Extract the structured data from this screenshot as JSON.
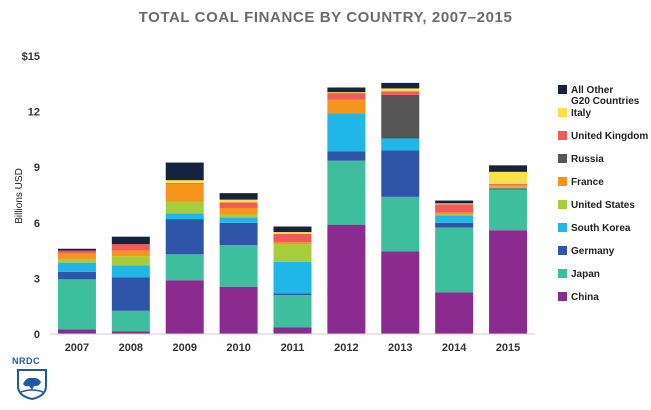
{
  "chart_data": {
    "type": "bar",
    "stacked": true,
    "title": "TOTAL COAL FINANCE BY COUNTRY, 2007–2015",
    "xlabel": "",
    "ylabel": "Billions USD",
    "ylim": [
      0,
      15
    ],
    "yticks": [
      0,
      3,
      6,
      9,
      12,
      15
    ],
    "ytick_labels": [
      "0",
      "3",
      "6",
      "9",
      "12",
      "$15"
    ],
    "grid": false,
    "legend_position": "right",
    "categories": [
      "2007",
      "2008",
      "2009",
      "2010",
      "2011",
      "2012",
      "2013",
      "2014",
      "2015"
    ],
    "series": [
      {
        "name": "China",
        "color": "#8b2a8f",
        "values": [
          0.25,
          0.15,
          2.9,
          2.55,
          0.35,
          5.9,
          4.45,
          2.25,
          5.6
        ]
      },
      {
        "name": "Japan",
        "color": "#3dbf9e",
        "values": [
          2.7,
          1.1,
          1.4,
          2.25,
          1.75,
          3.45,
          2.95,
          3.5,
          2.2
        ]
      },
      {
        "name": "Germany",
        "color": "#2e55a8",
        "values": [
          0.4,
          1.8,
          1.9,
          1.2,
          0.1,
          0.5,
          2.5,
          0.25,
          0.05
        ]
      },
      {
        "name": "South Korea",
        "color": "#20b6e8",
        "values": [
          0.5,
          0.65,
          0.3,
          0.3,
          1.7,
          2.05,
          0.65,
          0.4,
          0.0
        ]
      },
      {
        "name": "United States",
        "color": "#a8cc3a",
        "values": [
          0.2,
          0.5,
          0.65,
          0.15,
          0.95,
          0.0,
          0.0,
          0.05,
          0.1
        ]
      },
      {
        "name": "France",
        "color": "#f7941d",
        "values": [
          0.3,
          0.3,
          0.95,
          0.35,
          0.1,
          0.75,
          0.0,
          0.1,
          0.1
        ]
      },
      {
        "name": "Russia",
        "color": "#555555",
        "values": [
          0.0,
          0.0,
          0.0,
          0.0,
          0.0,
          0.0,
          2.35,
          0.0,
          0.0
        ]
      },
      {
        "name": "United Kingdom",
        "color": "#ef5b5b",
        "values": [
          0.15,
          0.35,
          0.05,
          0.3,
          0.45,
          0.35,
          0.2,
          0.45,
          0.05
        ]
      },
      {
        "name": "Italy",
        "color": "#f8e14b",
        "values": [
          0.0,
          0.0,
          0.15,
          0.15,
          0.1,
          0.05,
          0.15,
          0.05,
          0.65
        ]
      },
      {
        "name": "All Other G20 Countries",
        "color": "#14233f",
        "values": [
          0.1,
          0.4,
          0.95,
          0.35,
          0.3,
          0.25,
          0.3,
          0.15,
          0.35
        ]
      }
    ],
    "legend_order": [
      "All Other G20 Countries",
      "Italy",
      "United Kingdom",
      "Russia",
      "France",
      "United States",
      "South Korea",
      "Germany",
      "Japan",
      "China"
    ],
    "legend_lines": {
      "All Other G20 Countries": [
        "All Other",
        "G20 Countries"
      ]
    }
  },
  "logo": {
    "text": "NRDC"
  }
}
